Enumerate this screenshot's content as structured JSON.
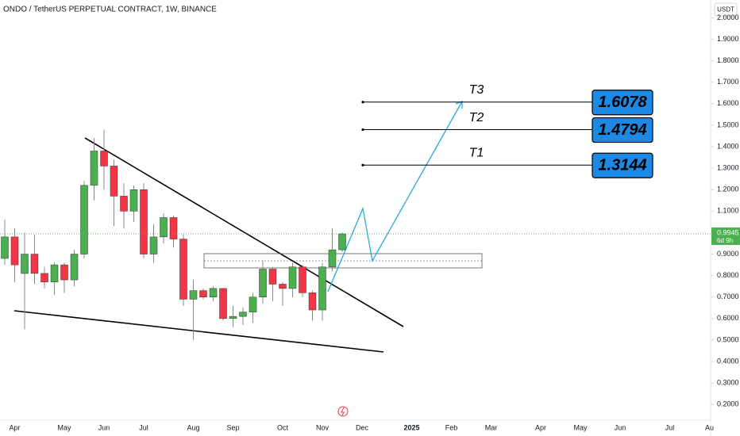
{
  "chart_data": {
    "type": "candlestick",
    "title": "ONDO / TetherUS PERPETUAL CONTRACT, 1W, BINANCE",
    "currency": "USDT",
    "last_price": 0.9945,
    "countdown": "6d 9h",
    "up_color": "#4caf50",
    "down_color": "#f23645",
    "grid": false,
    "ylim": [
      0.127,
      2.083
    ],
    "yticks": [
      {
        "value": 0.2,
        "label": "0.2000"
      },
      {
        "value": 0.3,
        "label": "0.3000"
      },
      {
        "value": 0.4,
        "label": "0.4000"
      },
      {
        "value": 0.5,
        "label": "0.5000"
      },
      {
        "value": 0.6,
        "label": "0.6000"
      },
      {
        "value": 0.7,
        "label": "0.7000"
      },
      {
        "value": 0.8,
        "label": "0.8000"
      },
      {
        "value": 0.9,
        "label": "0.9000"
      },
      {
        "value": 1.1,
        "label": "1.1000"
      },
      {
        "value": 1.2,
        "label": "1.2000"
      },
      {
        "value": 1.3,
        "label": "1.3000"
      },
      {
        "value": 1.4,
        "label": "1.4000"
      },
      {
        "value": 1.5,
        "label": "1.5000"
      },
      {
        "value": 1.6,
        "label": "1.6000"
      },
      {
        "value": 1.7,
        "label": "1.7000"
      },
      {
        "value": 1.8,
        "label": "1.8000"
      },
      {
        "value": 1.9,
        "label": "1.9000"
      },
      {
        "value": 2.0,
        "label": "2.0000"
      }
    ],
    "categories": [
      null,
      "Apr",
      null,
      null,
      null,
      null,
      "May",
      null,
      null,
      null,
      "Jun",
      null,
      null,
      null,
      "Jul",
      null,
      null,
      null,
      null,
      "Aug",
      null,
      null,
      null,
      "Sep",
      null,
      null,
      null,
      null,
      "Oct",
      null,
      null,
      null,
      "Nov",
      null,
      null,
      null,
      "Dec",
      null,
      null,
      null,
      null,
      "2025",
      null,
      null,
      null,
      "Feb",
      null,
      null,
      null,
      "Mar",
      null,
      null,
      null,
      null,
      "Apr",
      null,
      null,
      null,
      "May",
      null,
      null,
      null,
      "Jun",
      null,
      null,
      null,
      null,
      "Jul",
      null,
      null,
      null,
      "Au"
    ],
    "open": [
      0.88,
      0.98,
      0.81,
      0.9,
      0.81,
      0.77,
      0.85,
      0.78,
      0.9,
      1.22,
      1.38,
      1.31,
      1.17,
      1.1,
      1.2,
      0.9,
      0.98,
      1.07,
      0.97,
      0.69,
      0.73,
      0.7,
      0.74,
      0.6,
      0.61,
      0.63,
      0.7,
      0.83,
      0.76,
      0.74,
      0.84,
      0.72,
      0.64,
      0.84,
      0.92,
      null,
      null,
      null,
      null,
      null,
      null,
      null,
      null,
      null,
      null,
      null,
      null,
      null,
      null,
      null,
      null,
      null,
      null,
      null,
      null,
      null,
      null,
      null,
      null,
      null,
      null,
      null,
      null,
      null,
      null,
      null,
      null,
      null,
      null,
      null,
      null,
      null
    ],
    "high": [
      1.06,
      1.02,
      1.0,
      0.99,
      0.84,
      0.86,
      0.86,
      0.92,
      1.24,
      1.44,
      1.48,
      1.34,
      1.23,
      1.22,
      1.23,
      1.04,
      1.09,
      1.08,
      0.99,
      0.78,
      0.74,
      0.75,
      0.74,
      0.66,
      0.65,
      0.72,
      0.87,
      0.84,
      0.77,
      0.86,
      0.85,
      0.73,
      0.86,
      1.02,
      1.0,
      null,
      null,
      null,
      null,
      null,
      null,
      null,
      null,
      null,
      null,
      null,
      null,
      null,
      null,
      null,
      null,
      null,
      null,
      null,
      null,
      null,
      null,
      null,
      null,
      null,
      null,
      null,
      null,
      null,
      null,
      null,
      null,
      null,
      null,
      null,
      null,
      null
    ],
    "low": [
      0.85,
      0.77,
      0.55,
      0.76,
      0.74,
      0.71,
      0.72,
      0.75,
      0.88,
      1.15,
      1.2,
      1.03,
      1.02,
      1.05,
      0.88,
      0.86,
      0.95,
      0.93,
      0.66,
      0.5,
      0.69,
      0.68,
      0.59,
      0.56,
      0.57,
      0.58,
      0.67,
      0.68,
      0.66,
      0.7,
      0.7,
      0.59,
      0.59,
      0.82,
      0.91,
      null,
      null,
      null,
      null,
      null,
      null,
      null,
      null,
      null,
      null,
      null,
      null,
      null,
      null,
      null,
      null,
      null,
      null,
      null,
      null,
      null,
      null,
      null,
      null,
      null,
      null,
      null,
      null,
      null,
      null,
      null,
      null,
      null,
      null,
      null,
      null,
      null
    ],
    "close": [
      0.98,
      0.85,
      0.9,
      0.81,
      0.77,
      0.85,
      0.78,
      0.9,
      1.22,
      1.38,
      1.31,
      1.17,
      1.1,
      1.2,
      0.9,
      0.98,
      1.07,
      0.97,
      0.69,
      0.73,
      0.7,
      0.74,
      0.6,
      0.61,
      0.63,
      0.7,
      0.83,
      0.76,
      0.74,
      0.84,
      0.72,
      0.64,
      0.84,
      0.92,
      0.9945,
      null,
      null,
      null,
      null,
      null,
      null,
      null,
      null,
      null,
      null,
      null,
      null,
      null,
      null,
      null,
      null,
      null,
      null,
      null,
      null,
      null,
      null,
      null,
      null,
      null,
      null,
      null,
      null,
      null,
      null,
      null,
      null,
      null,
      null,
      null,
      null,
      null
    ],
    "targets": [
      {
        "label": "T3",
        "value": 1.6078
      },
      {
        "label": "T2",
        "value": 1.4794
      },
      {
        "label": "T1",
        "value": 1.3144
      }
    ]
  }
}
